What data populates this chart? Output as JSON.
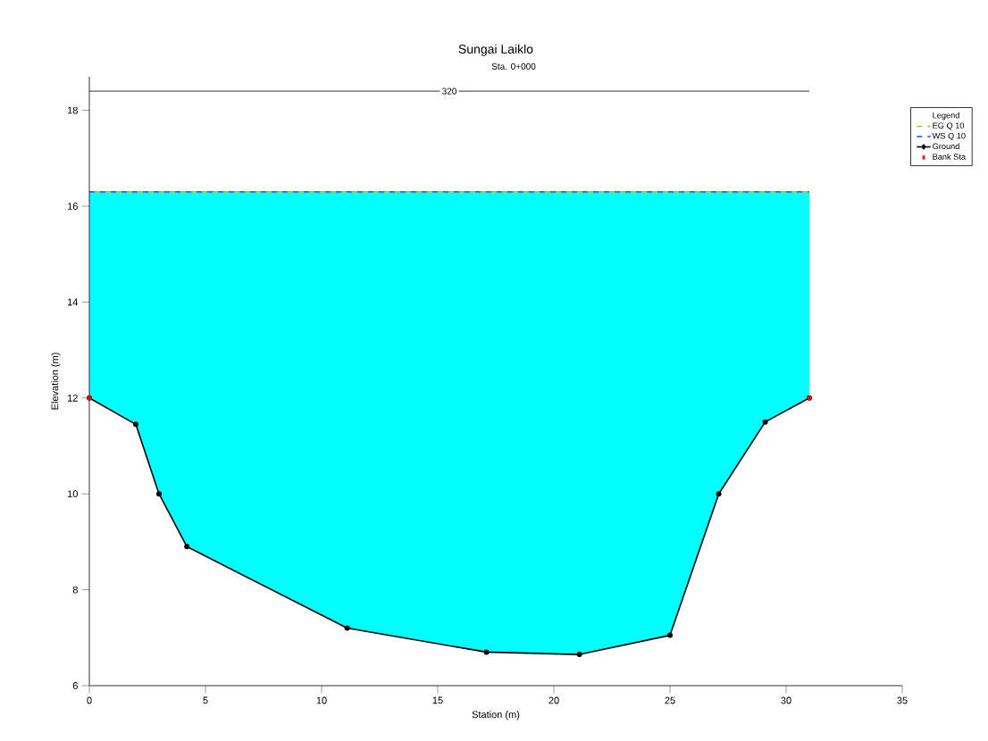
{
  "chart_data": {
    "type": "line",
    "title": "Sungai Laiklo",
    "subtitle": "Sta. 0+000",
    "xlabel": "Station (m)",
    "ylabel": "Elevation (m)",
    "legend_title": "Legend",
    "xlim": [
      0,
      35
    ],
    "ylim": [
      6,
      18.7
    ],
    "xticks": [
      0,
      5,
      10,
      15,
      20,
      25,
      30,
      35
    ],
    "yticks": [
      6,
      8,
      10,
      12,
      14,
      16,
      18
    ],
    "annotations": [
      {
        "text": "320",
        "x": 15.5,
        "y": 18.4
      }
    ],
    "legend": "right",
    "grid": false,
    "series": [
      {
        "name": "EG Q 10",
        "color": "#99cc33",
        "line_style": "dashed",
        "marker": "none",
        "x": [
          0,
          31
        ],
        "values": [
          16.3,
          16.3
        ]
      },
      {
        "name": "WS Q 10",
        "color": "#3366ff",
        "line_style": "dashed",
        "marker": "none",
        "x": [
          0,
          2,
          3,
          4.2,
          11.1,
          17.1,
          21.1,
          25,
          27.1,
          29.1,
          31
        ],
        "values": [
          16.3,
          16.3,
          16.3,
          16.3,
          16.3,
          16.3,
          16.3,
          16.3,
          16.3,
          16.3,
          16.3
        ],
        "lower": [
          12,
          11.45,
          10,
          8.9,
          7.2,
          6.7,
          6.65,
          7.05,
          10,
          11.5,
          12
        ],
        "upper": [
          16.3,
          16.3,
          16.3,
          16.3,
          16.3,
          16.3,
          16.3,
          16.3,
          16.3,
          16.3,
          16.3
        ]
      },
      {
        "name": "Ground",
        "color": "#000000",
        "line_style": "solid",
        "marker": "circle",
        "x": [
          0,
          2,
          3,
          4.2,
          11.1,
          17.1,
          21.1,
          25,
          27.1,
          29.1,
          31
        ],
        "values": [
          12,
          11.45,
          10,
          8.9,
          7.2,
          6.7,
          6.65,
          7.05,
          10,
          11.5,
          12
        ]
      },
      {
        "name": "Bank Sta",
        "type": "scatter",
        "color": "#ff0000",
        "marker": "circle",
        "x": [
          0,
          31
        ],
        "values": [
          12,
          12
        ]
      },
      {
        "color": "#000000",
        "line_style": "solid",
        "marker": "none",
        "x": [
          0,
          31
        ],
        "values": [
          18.4,
          18.4
        ]
      }
    ]
  }
}
